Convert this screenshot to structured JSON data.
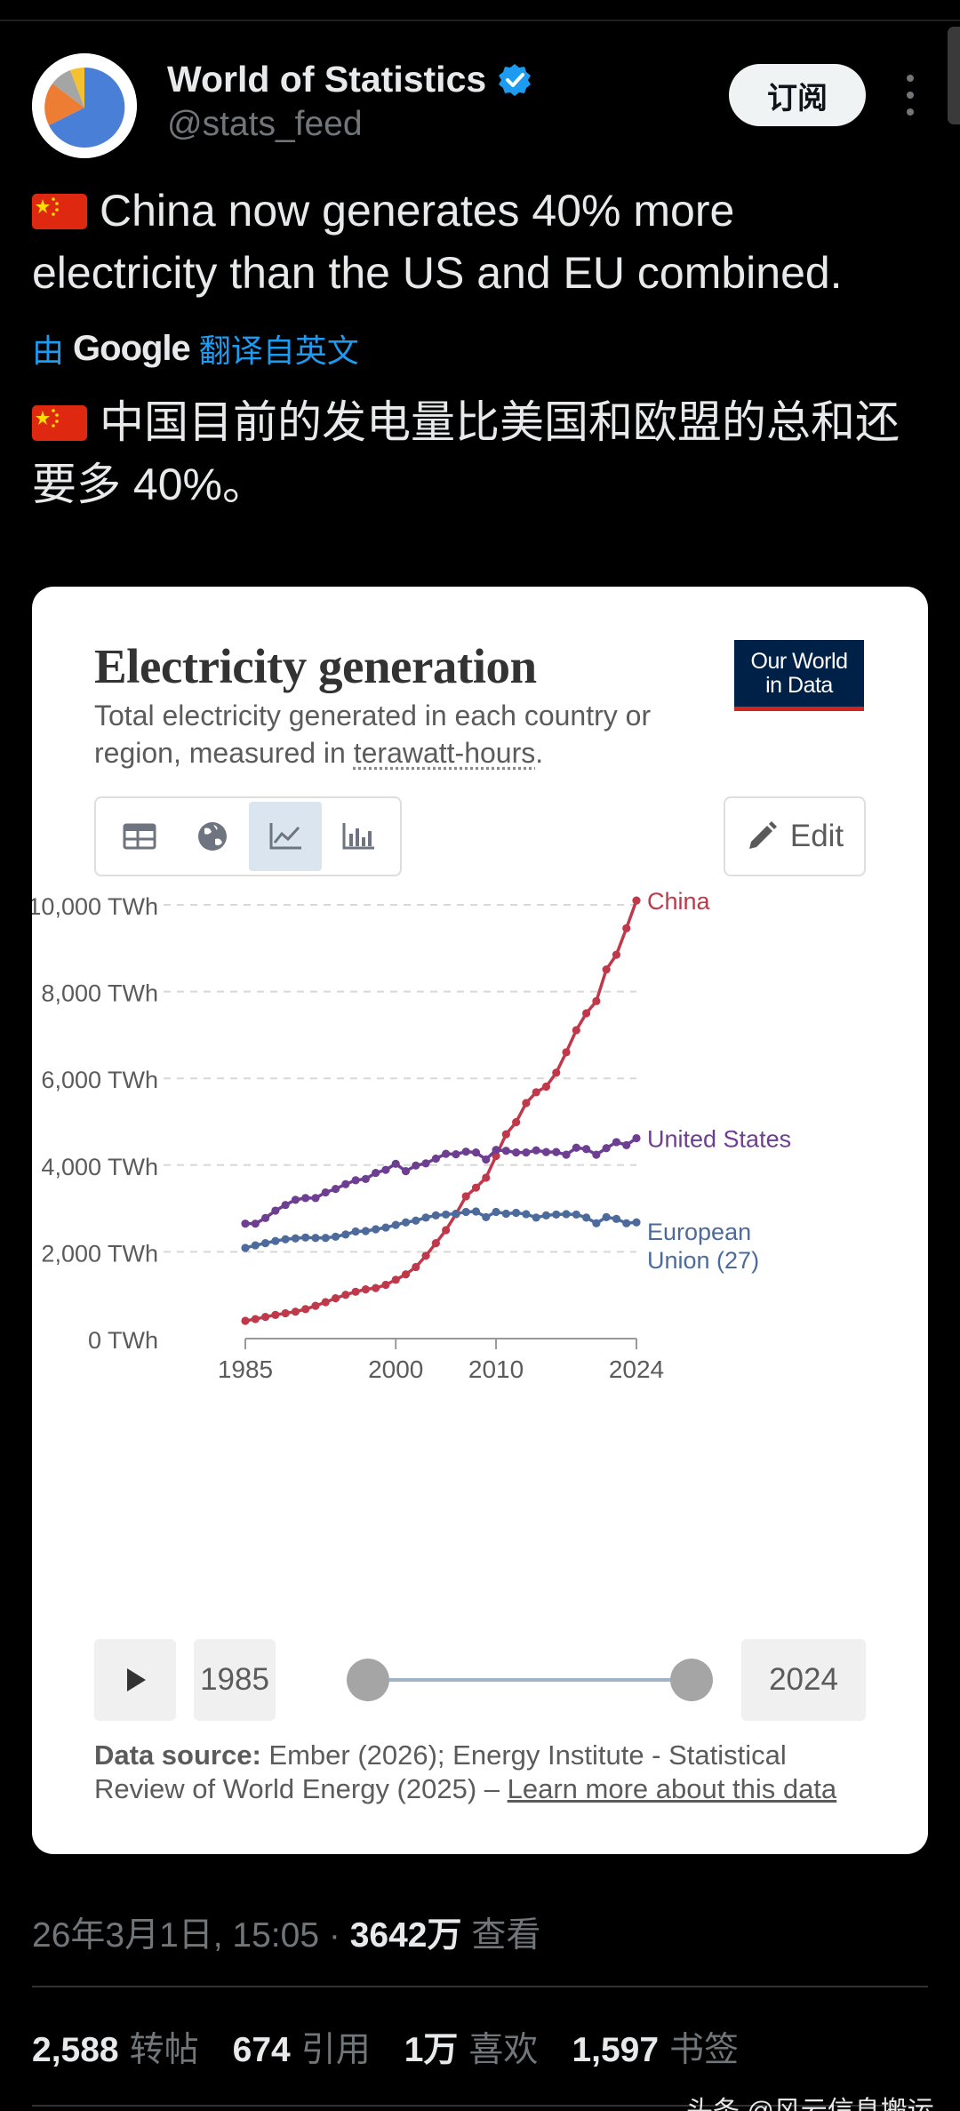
{
  "author": {
    "name": "World of Statistics",
    "handle": "@stats_feed"
  },
  "header": {
    "subscribe_label": "订阅"
  },
  "tweet": {
    "text": "China now generates 40% more electricity than the US and EU combined.",
    "translate_prefix": "由",
    "translate_brand": "Google",
    "translate_suffix": "翻译自英文",
    "translated_text": "中国目前的发电量比美国和欧盟的总和还要多 40%。"
  },
  "card": {
    "title": "Electricity generation",
    "subtitle_prefix": "Total electricity generated in each country or region, measured in ",
    "subtitle_link": "terawatt-hours",
    "subtitle_suffix": ".",
    "badge_line1": "Our World",
    "badge_line2": "in Data",
    "edit_label": "Edit",
    "tabs": [
      "table-icon",
      "globe-icon",
      "line-chart-icon",
      "bar-chart-icon"
    ],
    "start_year": "1985",
    "end_year": "2024",
    "source_label": "Data source:",
    "source_text": " Ember (2026); Energy Institute - Statistical Review of World Energy (2025) – ",
    "source_link": "Learn more about this data"
  },
  "chart_data": {
    "type": "line",
    "title": "Electricity generation",
    "ylabel": "",
    "xlabel": "",
    "ylim": [
      0,
      10000
    ],
    "yticks": [
      "0 TWh",
      "2,000 TWh",
      "4,000 TWh",
      "6,000 TWh",
      "8,000 TWh",
      "10,000 TWh"
    ],
    "ytick_values": [
      0,
      2000,
      4000,
      6000,
      8000,
      10000
    ],
    "xticks": [
      "1985",
      "2000",
      "2010",
      "2024"
    ],
    "xtick_values": [
      1985,
      2000,
      2010,
      2024
    ],
    "x": [
      1985,
      1986,
      1987,
      1988,
      1989,
      1990,
      1991,
      1992,
      1993,
      1994,
      1995,
      1996,
      1997,
      1998,
      1999,
      2000,
      2001,
      2002,
      2003,
      2004,
      2005,
      2006,
      2007,
      2008,
      2009,
      2010,
      2011,
      2012,
      2013,
      2014,
      2015,
      2016,
      2017,
      2018,
      2019,
      2020,
      2021,
      2022,
      2023,
      2024
    ],
    "series": [
      {
        "name": "China",
        "color": "#c0394b",
        "values": [
          410,
          450,
          500,
          545,
          585,
          620,
          680,
          755,
          840,
          930,
          1010,
          1080,
          1135,
          1165,
          1240,
          1356,
          1480,
          1650,
          1910,
          2200,
          2500,
          2870,
          3280,
          3480,
          3710,
          4210,
          4710,
          4990,
          5430,
          5680,
          5810,
          6130,
          6600,
          7110,
          7500,
          7780,
          8510,
          8850,
          9460,
          10100
        ]
      },
      {
        "name": "United States",
        "color": "#6d3e91",
        "values": [
          2650,
          2650,
          2780,
          2950,
          3080,
          3200,
          3240,
          3240,
          3370,
          3450,
          3560,
          3650,
          3680,
          3820,
          3890,
          4030,
          3860,
          3990,
          4040,
          4150,
          4260,
          4250,
          4310,
          4290,
          4130,
          4350,
          4330,
          4290,
          4290,
          4340,
          4300,
          4300,
          4240,
          4400,
          4370,
          4240,
          4390,
          4530,
          4460,
          4620
        ]
      },
      {
        "name": "European Union (27)",
        "color": "#4c6a9c",
        "values": [
          2090,
          2150,
          2200,
          2250,
          2290,
          2310,
          2330,
          2320,
          2320,
          2350,
          2400,
          2470,
          2480,
          2520,
          2560,
          2620,
          2680,
          2720,
          2790,
          2840,
          2860,
          2880,
          2920,
          2930,
          2800,
          2920,
          2880,
          2900,
          2870,
          2790,
          2840,
          2860,
          2870,
          2860,
          2790,
          2660,
          2800,
          2760,
          2660,
          2680
        ]
      }
    ],
    "legend_labels": [
      {
        "series": "China",
        "lines": [
          "China"
        ]
      },
      {
        "series": "United States",
        "lines": [
          "United States"
        ]
      },
      {
        "series": "European Union (27)",
        "lines": [
          "European",
          "Union (27)"
        ]
      }
    ],
    "legend": "right-end-labels",
    "grid": "horizontal-dashed"
  },
  "footer": {
    "timestamp": "26年3月1日, 15:05",
    "views_num": "3642万",
    "views_label": "查看",
    "dot": "·",
    "stats": [
      {
        "num": "2,588",
        "label": "转帖"
      },
      {
        "num": "674",
        "label": "引用"
      },
      {
        "num": "1万",
        "label": "喜欢"
      },
      {
        "num": "1,597",
        "label": "书签"
      }
    ],
    "watermark": "头条 @风云信息搬运工"
  },
  "colors": {
    "accent": "#1d9bf0",
    "verified": "#1d9bf0",
    "owid_navy": "#002147",
    "owid_red": "#ce261e"
  }
}
